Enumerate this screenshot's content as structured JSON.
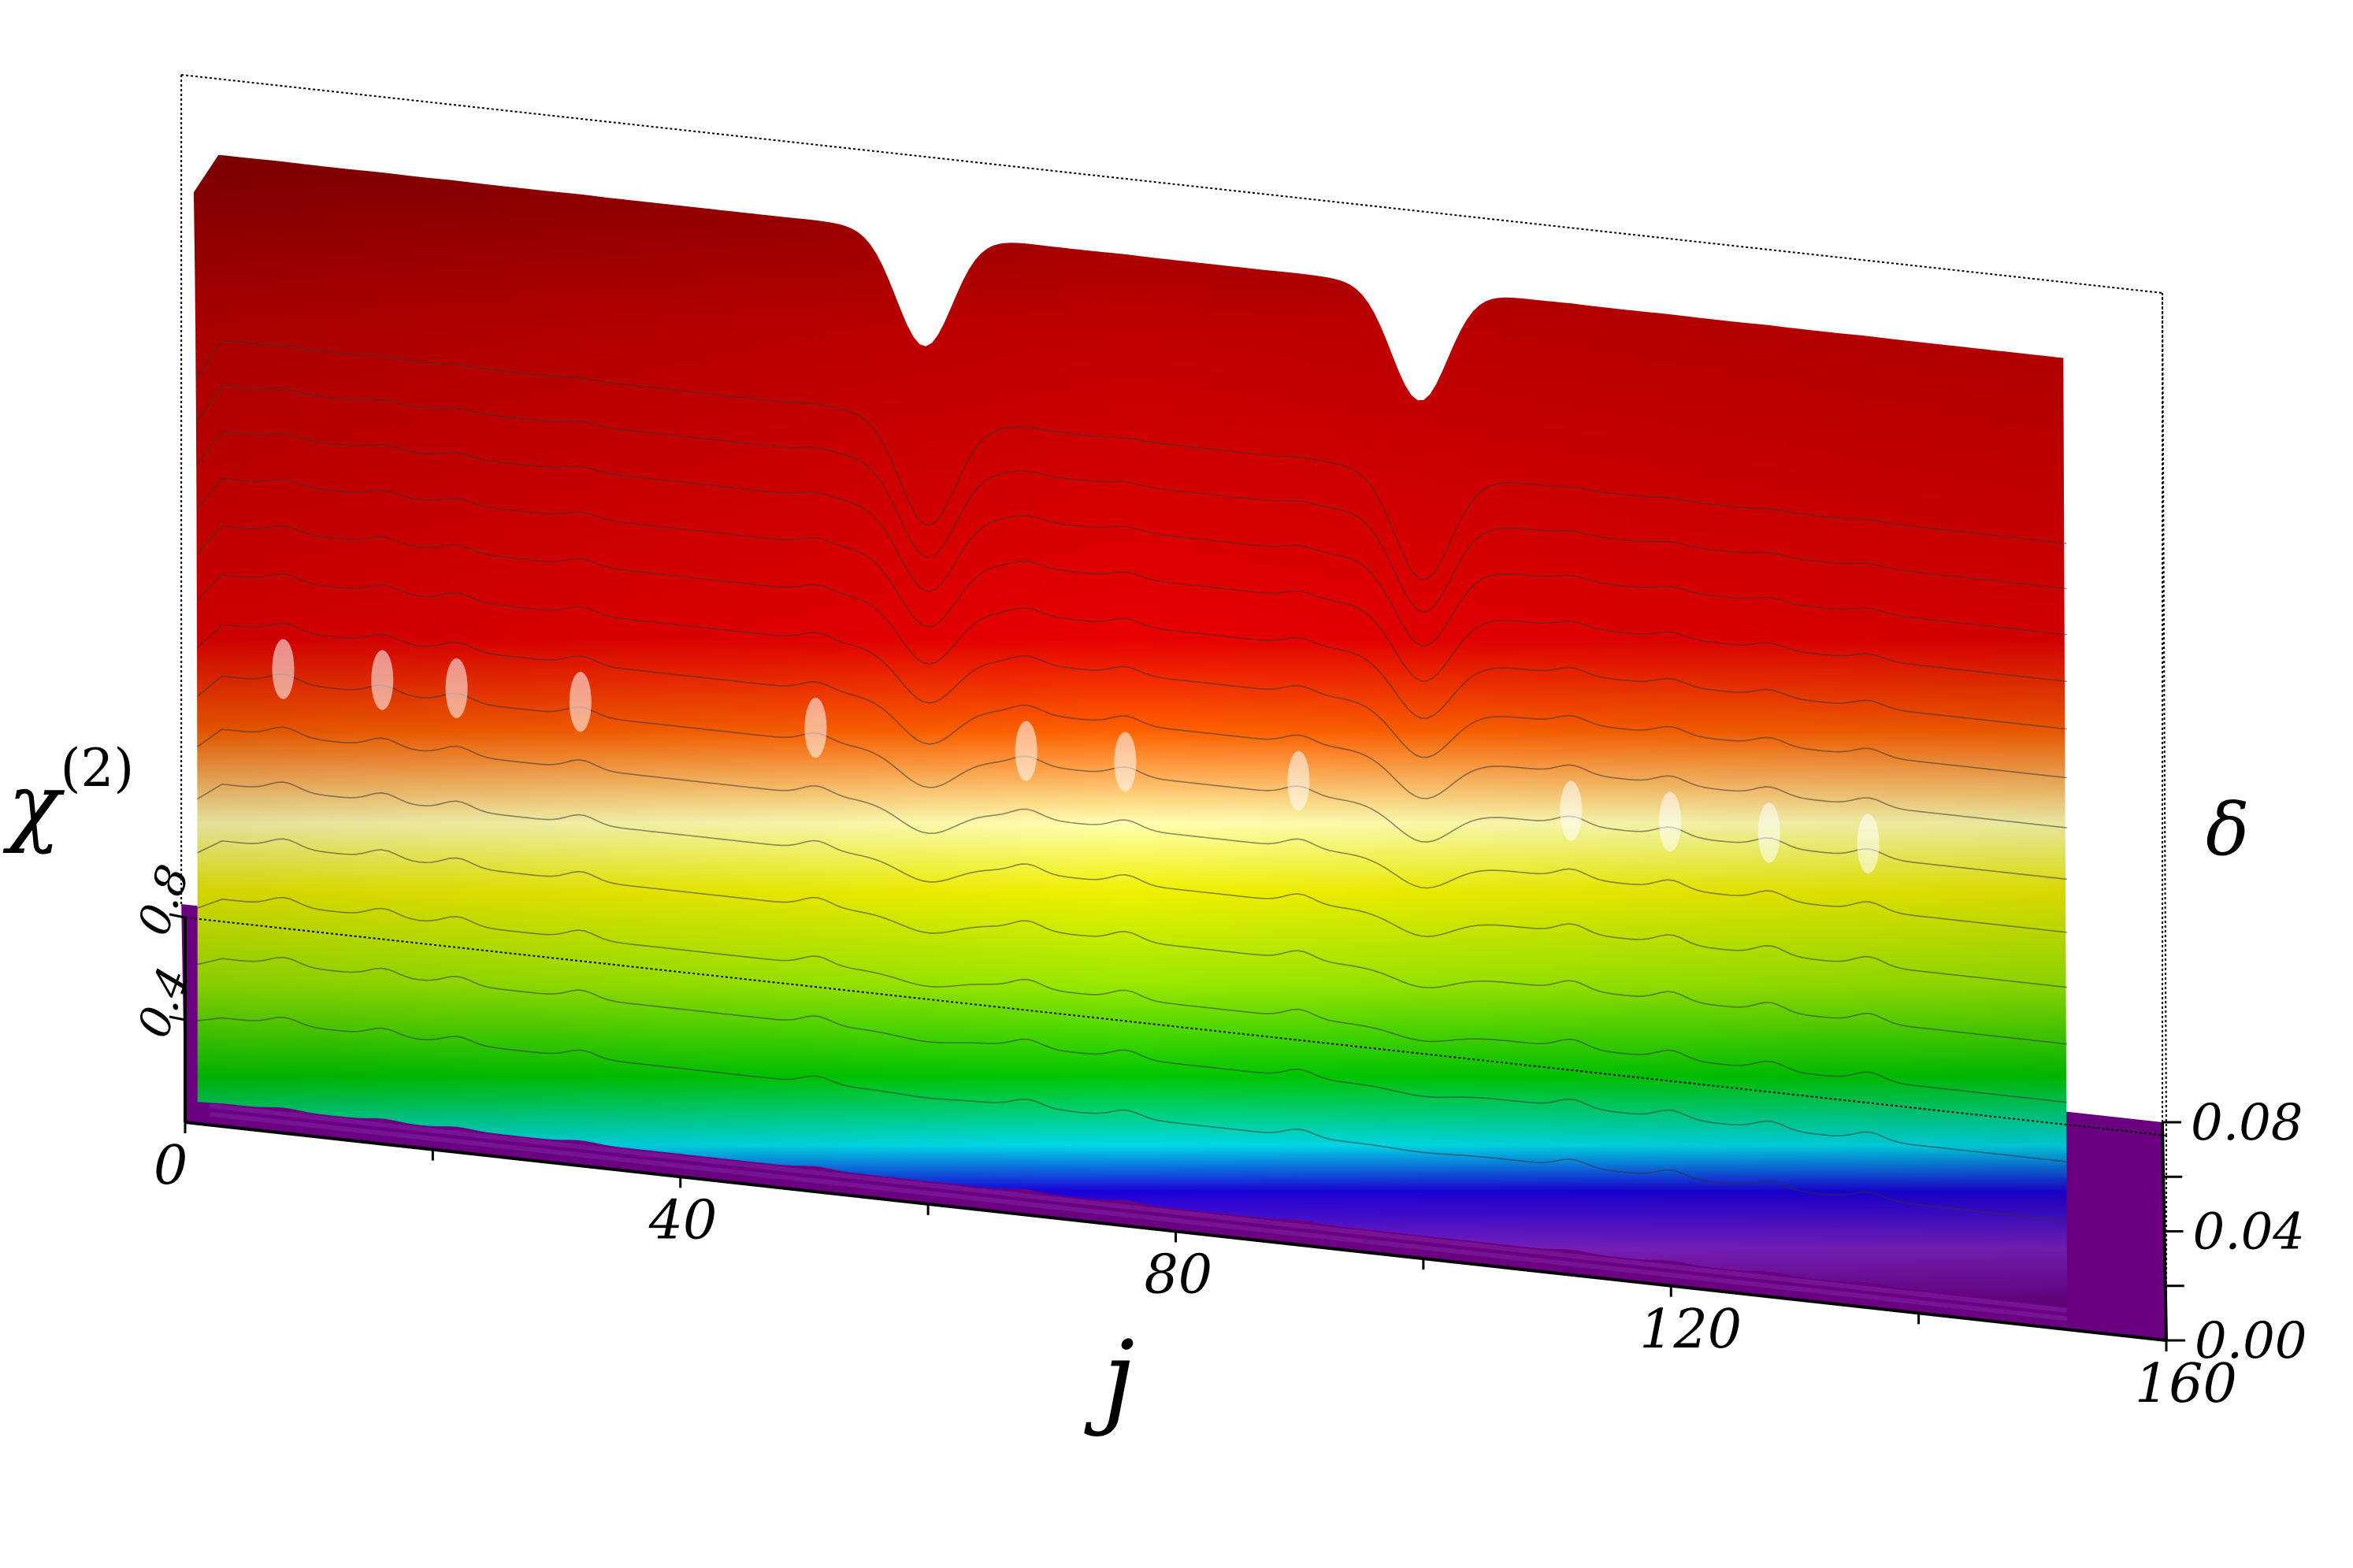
{
  "chart_data": {
    "type": "surface3d",
    "title": "",
    "xlabel": "j",
    "ylabel": "δ",
    "zlabel": "χ",
    "zlabel_superscript": "(2)",
    "xlim": [
      0,
      160
    ],
    "ylim": [
      0,
      0.08
    ],
    "zlim": [
      0,
      0.8
    ],
    "x_ticks": [
      0,
      40,
      80,
      120,
      160
    ],
    "x_tick_labels": [
      "0",
      "40",
      "80",
      "120",
      "160"
    ],
    "y_ticks": [
      0.0,
      0.04,
      0.08
    ],
    "y_tick_labels": [
      "0.00",
      "0.04",
      "0.08"
    ],
    "z_ticks": [
      0.4,
      0.8
    ],
    "z_tick_labels": [
      "0.4",
      "0.8"
    ],
    "colormap": [
      "#6a0080",
      "#1a00d8",
      "#00d8e8",
      "#00c800",
      "#f0f000",
      "#ffffb0",
      "#e80000",
      "#8a0000"
    ],
    "floor_color": "#6a0080",
    "ridge_peaks_j": [
      8,
      16,
      22,
      32,
      51,
      68,
      76,
      90,
      112,
      120,
      128,
      136
    ],
    "valley_dips_j": [
      60,
      100
    ]
  }
}
